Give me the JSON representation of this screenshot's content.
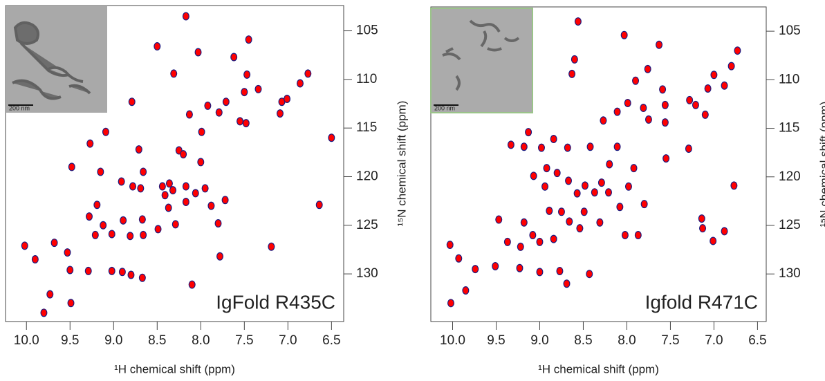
{
  "chart_data": [
    {
      "type": "scatter",
      "annotation": "IgFold R435C",
      "scale_bar": "200 nm",
      "xlabel": "¹H chemical shift (ppm)",
      "ylabel": "¹⁵N chemical shift (ppm)",
      "color": "#ff0000",
      "edge_color": "#1a1a80",
      "xlim": [
        10.24,
        6.36
      ],
      "ylim": [
        134.9,
        102.4
      ],
      "xticks": [
        {
          "value": 10,
          "label": "10.0"
        },
        9.5,
        {
          "value": 9,
          "label": "9.0"
        },
        8.5,
        {
          "value": 8,
          "label": "8.0"
        },
        7.5,
        {
          "value": 7,
          "label": "7.0"
        },
        6.5
      ],
      "yticks": [
        105,
        110,
        115,
        120,
        125,
        130
      ],
      "x": [
        8.17,
        8.5,
        8.03,
        7.45,
        7.62,
        8.31,
        6.77,
        7.47,
        6.86,
        7.34,
        7.5,
        7.71,
        7.07,
        7.01,
        8.79,
        7.92,
        7.79,
        7.09,
        8.13,
        7.48,
        7.55,
        7.99,
        9.09,
        9.27,
        6.5,
        8.71,
        8.25,
        8.2,
        8.0,
        9.48,
        9.15,
        8.66,
        8.91,
        8.78,
        8.69,
        8.36,
        8.32,
        8.41,
        8.17,
        8.06,
        7.95,
        8.17,
        7.88,
        7.72,
        6.64,
        9.28,
        8.89,
        8.67,
        8.49,
        8.29,
        7.8,
        9.12,
        9.02,
        9.21,
        8.81,
        10.02,
        9.9,
        9.68,
        9.53,
        7.19,
        7.78,
        8.66,
        9.29,
        9.5,
        9.02,
        8.9,
        8.8,
        8.67,
        8.1,
        9.73,
        9.49,
        9.8,
        8.44,
        8.37,
        9.19
      ],
      "y": [
        103.5,
        106.6,
        107.2,
        105.9,
        107.7,
        109.4,
        109.4,
        109.5,
        110.4,
        111.0,
        111.3,
        112.3,
        112.3,
        112.0,
        112.3,
        112.7,
        113.4,
        113.5,
        113.6,
        114.5,
        114.3,
        115.4,
        115.4,
        116.6,
        116.0,
        117.2,
        117.3,
        117.7,
        118.5,
        119.0,
        119.5,
        119.5,
        120.5,
        121.0,
        121.2,
        120.7,
        121.4,
        121.9,
        121.0,
        121.7,
        121.2,
        122.6,
        123.0,
        122.4,
        122.9,
        124.1,
        124.5,
        124.4,
        125.4,
        124.9,
        124.8,
        125.0,
        125.9,
        126.0,
        126.1,
        127.1,
        128.5,
        126.8,
        127.8,
        127.2,
        128.2,
        126.0,
        129.7,
        129.6,
        129.7,
        129.8,
        130.1,
        130.4,
        131.1,
        132.1,
        133.0,
        134.0,
        121.0,
        123.2,
        122.9
      ]
    },
    {
      "type": "scatter",
      "annotation": "Igfold R471C",
      "scale_bar": "200 nm",
      "xlabel": "¹H chemical shift (ppm)",
      "ylabel": "¹⁵N chemical shift (ppm)",
      "color": "#ff0000",
      "edge_color": "#1a1a80",
      "xlim": [
        10.25,
        6.4
      ],
      "ylim": [
        134.9,
        102.5
      ],
      "xticks": [
        {
          "value": 10,
          "label": "10.0"
        },
        9.5,
        {
          "value": 9,
          "label": "9.0"
        },
        8.5,
        {
          "value": 8,
          "label": "8.0"
        },
        7.5,
        {
          "value": 7,
          "label": "7.0"
        },
        6.5
      ],
      "yticks": [
        105,
        110,
        115,
        120,
        125,
        130
      ],
      "x": [
        8.56,
        7.63,
        8.03,
        8.6,
        6.73,
        7.0,
        6.8,
        8.63,
        7.76,
        7.9,
        7.59,
        7.07,
        6.88,
        7.99,
        7.81,
        7.56,
        7.28,
        7.21,
        7.1,
        8.11,
        7.75,
        7.56,
        8.27,
        9.13,
        8.84,
        9.33,
        9.18,
        8.98,
        8.68,
        8.42,
        8.11,
        8.2,
        7.92,
        7.55,
        7.29,
        8.92,
        8.8,
        9.07,
        8.94,
        8.48,
        8.29,
        8.57,
        8.21,
        7.98,
        7.8,
        8.08,
        8.75,
        8.49,
        8.31,
        8.54,
        8.66,
        8.89,
        9.18,
        9.47,
        8.02,
        8.84,
        9.0,
        9.08,
        9.22,
        9.37,
        10.03,
        9.93,
        9.74,
        9.51,
        9.23,
        9.0,
        8.77,
        8.43,
        8.69,
        7.14,
        7.13,
        7.01,
        6.88,
        6.77,
        7.87,
        10.02,
        9.85,
        8.67,
        8.37
      ],
      "y": [
        104.0,
        106.4,
        105.4,
        107.9,
        107.0,
        109.5,
        108.6,
        109.4,
        108.9,
        110.1,
        111.0,
        110.9,
        110.6,
        112.4,
        112.9,
        112.6,
        112.1,
        112.6,
        113.6,
        113.3,
        114.1,
        114.4,
        114.2,
        115.4,
        116.1,
        116.7,
        116.9,
        117.0,
        117.0,
        116.9,
        116.9,
        118.7,
        119.1,
        118.1,
        117.1,
        119.1,
        119.6,
        119.9,
        121.0,
        120.9,
        120.6,
        121.7,
        121.6,
        121.0,
        122.8,
        123.1,
        123.6,
        123.6,
        124.7,
        125.3,
        124.6,
        123.5,
        124.7,
        124.4,
        126.0,
        126.4,
        126.7,
        126.0,
        127.2,
        126.7,
        127.0,
        128.4,
        129.5,
        129.2,
        129.4,
        129.8,
        129.7,
        130.0,
        131.0,
        124.3,
        125.3,
        126.6,
        125.6,
        120.9,
        126.0,
        133.0,
        131.7,
        120.4,
        121.6
      ]
    }
  ]
}
